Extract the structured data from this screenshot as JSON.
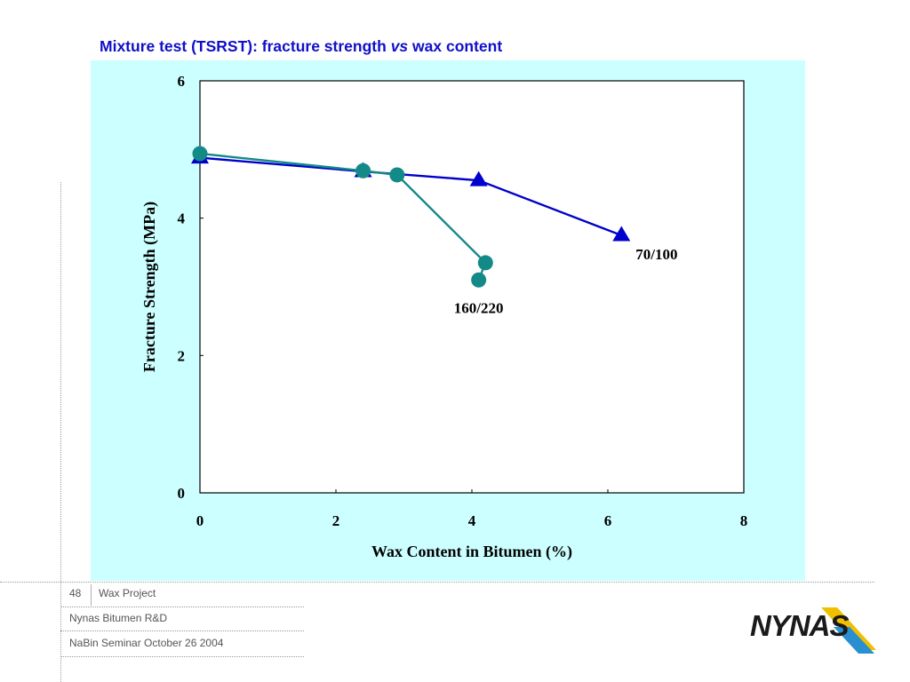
{
  "slide": {
    "title_main": "Mixture test (TSRST): fracture strength ",
    "title_vs": "vs",
    "title_end": " wax content"
  },
  "footer": {
    "page_number": "48",
    "project": "Wax Project",
    "department": "Nynas Bitumen R&D",
    "event": "NaBin Seminar October 26 2004"
  },
  "logo": {
    "text": "NYNAS",
    "colors": [
      "#1a1a1a",
      "#f0c000",
      "#2a8fd0"
    ]
  },
  "colors": {
    "panel_bg": "#ccffff",
    "title": "#1010c8",
    "series_70_100": "#0000cc",
    "series_160_220": "#148a88"
  },
  "chart_data": {
    "type": "line",
    "xlabel": "Wax Content in Bitumen (%)",
    "ylabel": "Fracture Strength (MPa)",
    "xlim": [
      0,
      8
    ],
    "ylim": [
      0,
      6
    ],
    "xticks": [
      0,
      2,
      4,
      6,
      8
    ],
    "yticks": [
      0,
      2,
      4,
      6
    ],
    "grid": false,
    "series": [
      {
        "name": "70/100",
        "marker": "triangle",
        "color": "#0000cc",
        "x": [
          0,
          2.4,
          4.1,
          6.2
        ],
        "y": [
          4.88,
          4.68,
          4.55,
          3.75
        ]
      },
      {
        "name": "160/220",
        "marker": "circle",
        "color": "#148a88",
        "x": [
          0,
          2.4,
          2.9,
          4.2,
          4.1
        ],
        "y": [
          4.94,
          4.69,
          4.63,
          3.35,
          3.1
        ]
      }
    ]
  }
}
